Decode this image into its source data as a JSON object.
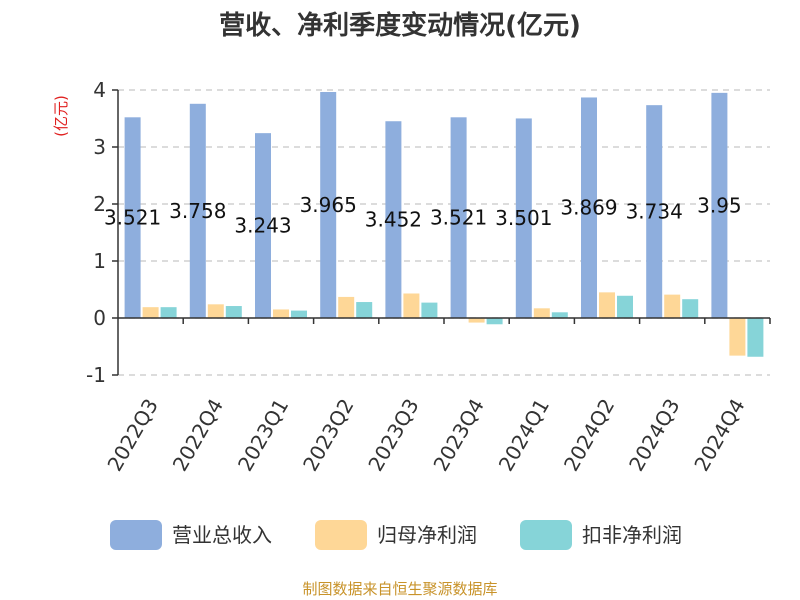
{
  "chart_data": {
    "type": "bar",
    "title": "营收、净利季度变动情况(亿元)",
    "ylabel": "(亿元)",
    "ylim": [
      -1,
      4
    ],
    "yticks": [
      -1,
      0,
      1,
      2,
      3,
      4
    ],
    "grid": true,
    "legend_position": "bottom",
    "categories": [
      "2022Q3",
      "2022Q4",
      "2023Q1",
      "2023Q2",
      "2023Q3",
      "2023Q4",
      "2024Q1",
      "2024Q2",
      "2024Q3",
      "2024Q4"
    ],
    "series": [
      {
        "name": "营业总收入",
        "color": "#8eaedd",
        "values": [
          3.521,
          3.758,
          3.243,
          3.965,
          3.452,
          3.521,
          3.501,
          3.869,
          3.734,
          3.95
        ],
        "labels": [
          "3.521",
          "3.758",
          "3.243",
          "3.965",
          "3.452",
          "3.521",
          "3.501",
          "3.869",
          "3.734",
          "3.95"
        ]
      },
      {
        "name": "归母净利润",
        "color": "#fed797",
        "values": [
          0.19,
          0.24,
          0.15,
          0.37,
          0.43,
          -0.08,
          0.17,
          0.45,
          0.41,
          -0.66
        ]
      },
      {
        "name": "扣非净利润",
        "color": "#86d4d8",
        "values": [
          0.19,
          0.21,
          0.13,
          0.28,
          0.27,
          -0.11,
          0.1,
          0.39,
          0.33,
          -0.68
        ]
      }
    ]
  },
  "source": "制图数据来自恒生聚源数据库"
}
